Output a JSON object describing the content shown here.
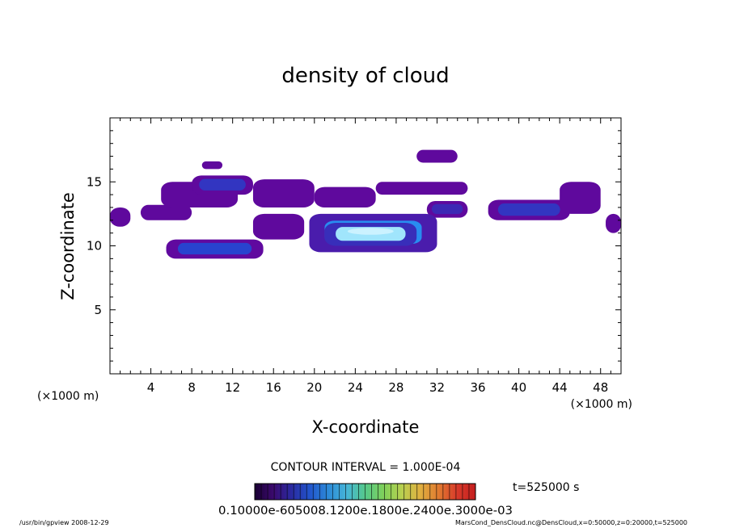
{
  "chart_data": {
    "type": "heatmap",
    "title": "density of cloud",
    "xlabel": "X-coordinate",
    "ylabel": "Z-coordinate",
    "x_unit_left": "(×1000 m)",
    "x_unit_right": "(×1000 m)",
    "xlim": [
      0,
      50
    ],
    "ylim": [
      0,
      20
    ],
    "x_ticks": [
      4,
      8,
      12,
      16,
      20,
      24,
      28,
      32,
      36,
      40,
      44,
      48
    ],
    "y_ticks": [
      5,
      10,
      15
    ],
    "grid": false,
    "contour_interval": "CONTOUR INTERVAL = 1.000E-04",
    "time": "t=525000 s",
    "colorbar_labels": "0.10000e-605008.1200e.1800e.2400e.3000e-03",
    "colorbar_colors": [
      "#1a0033",
      "#3b0a6e",
      "#2a2aa0",
      "#2255cc",
      "#2c8ad8",
      "#46b5d8",
      "#55c98a",
      "#7fd05a",
      "#b8d050",
      "#e0b040",
      "#e07a30",
      "#d83a2a",
      "#c41e1e"
    ],
    "density_regions": [
      {
        "x": [
          0,
          2
        ],
        "z": [
          11.5,
          13
        ],
        "level": 0.35
      },
      {
        "x": [
          3,
          8
        ],
        "z": [
          12,
          13.2
        ],
        "level": 0.4
      },
      {
        "x": [
          5,
          12.5
        ],
        "z": [
          13,
          15
        ],
        "level": 0.4
      },
      {
        "x": [
          8,
          14
        ],
        "z": [
          14,
          15.5
        ],
        "level": 0.55
      },
      {
        "x": [
          9,
          11
        ],
        "z": [
          16,
          16.6
        ],
        "level": 0.35
      },
      {
        "x": [
          14,
          20
        ],
        "z": [
          13,
          15.2
        ],
        "level": 0.4
      },
      {
        "x": [
          20,
          26
        ],
        "z": [
          13,
          14.6
        ],
        "level": 0.45
      },
      {
        "x": [
          26,
          35
        ],
        "z": [
          14,
          15
        ],
        "level": 0.35
      },
      {
        "x": [
          30,
          34
        ],
        "z": [
          16.5,
          17.5
        ],
        "level": 0.35
      },
      {
        "x": [
          31,
          35
        ],
        "z": [
          12.2,
          13.5
        ],
        "level": 0.5
      },
      {
        "x": [
          37,
          45
        ],
        "z": [
          12,
          13.6
        ],
        "level": 0.55
      },
      {
        "x": [
          44,
          48
        ],
        "z": [
          12.5,
          15
        ],
        "level": 0.4
      },
      {
        "x": [
          48.5,
          50
        ],
        "z": [
          11,
          12.5
        ],
        "level": 0.4
      },
      {
        "x": [
          5.5,
          15
        ],
        "z": [
          9,
          10.5
        ],
        "level": 0.6
      },
      {
        "x": [
          14,
          19
        ],
        "z": [
          10.5,
          12.5
        ],
        "level": 0.45
      },
      {
        "x": [
          19.5,
          32
        ],
        "z": [
          9.5,
          12.5
        ],
        "level": 0.8
      },
      {
        "x": [
          21,
          30
        ],
        "z": [
          10,
          11.8
        ],
        "level": 0.95
      }
    ]
  },
  "footer": {
    "left": "/usr/bin/gpview  2008-12-29",
    "right": "MarsCond_DensCloud.nc@DensCloud,x=0:50000,z=0:20000,t=525000"
  }
}
